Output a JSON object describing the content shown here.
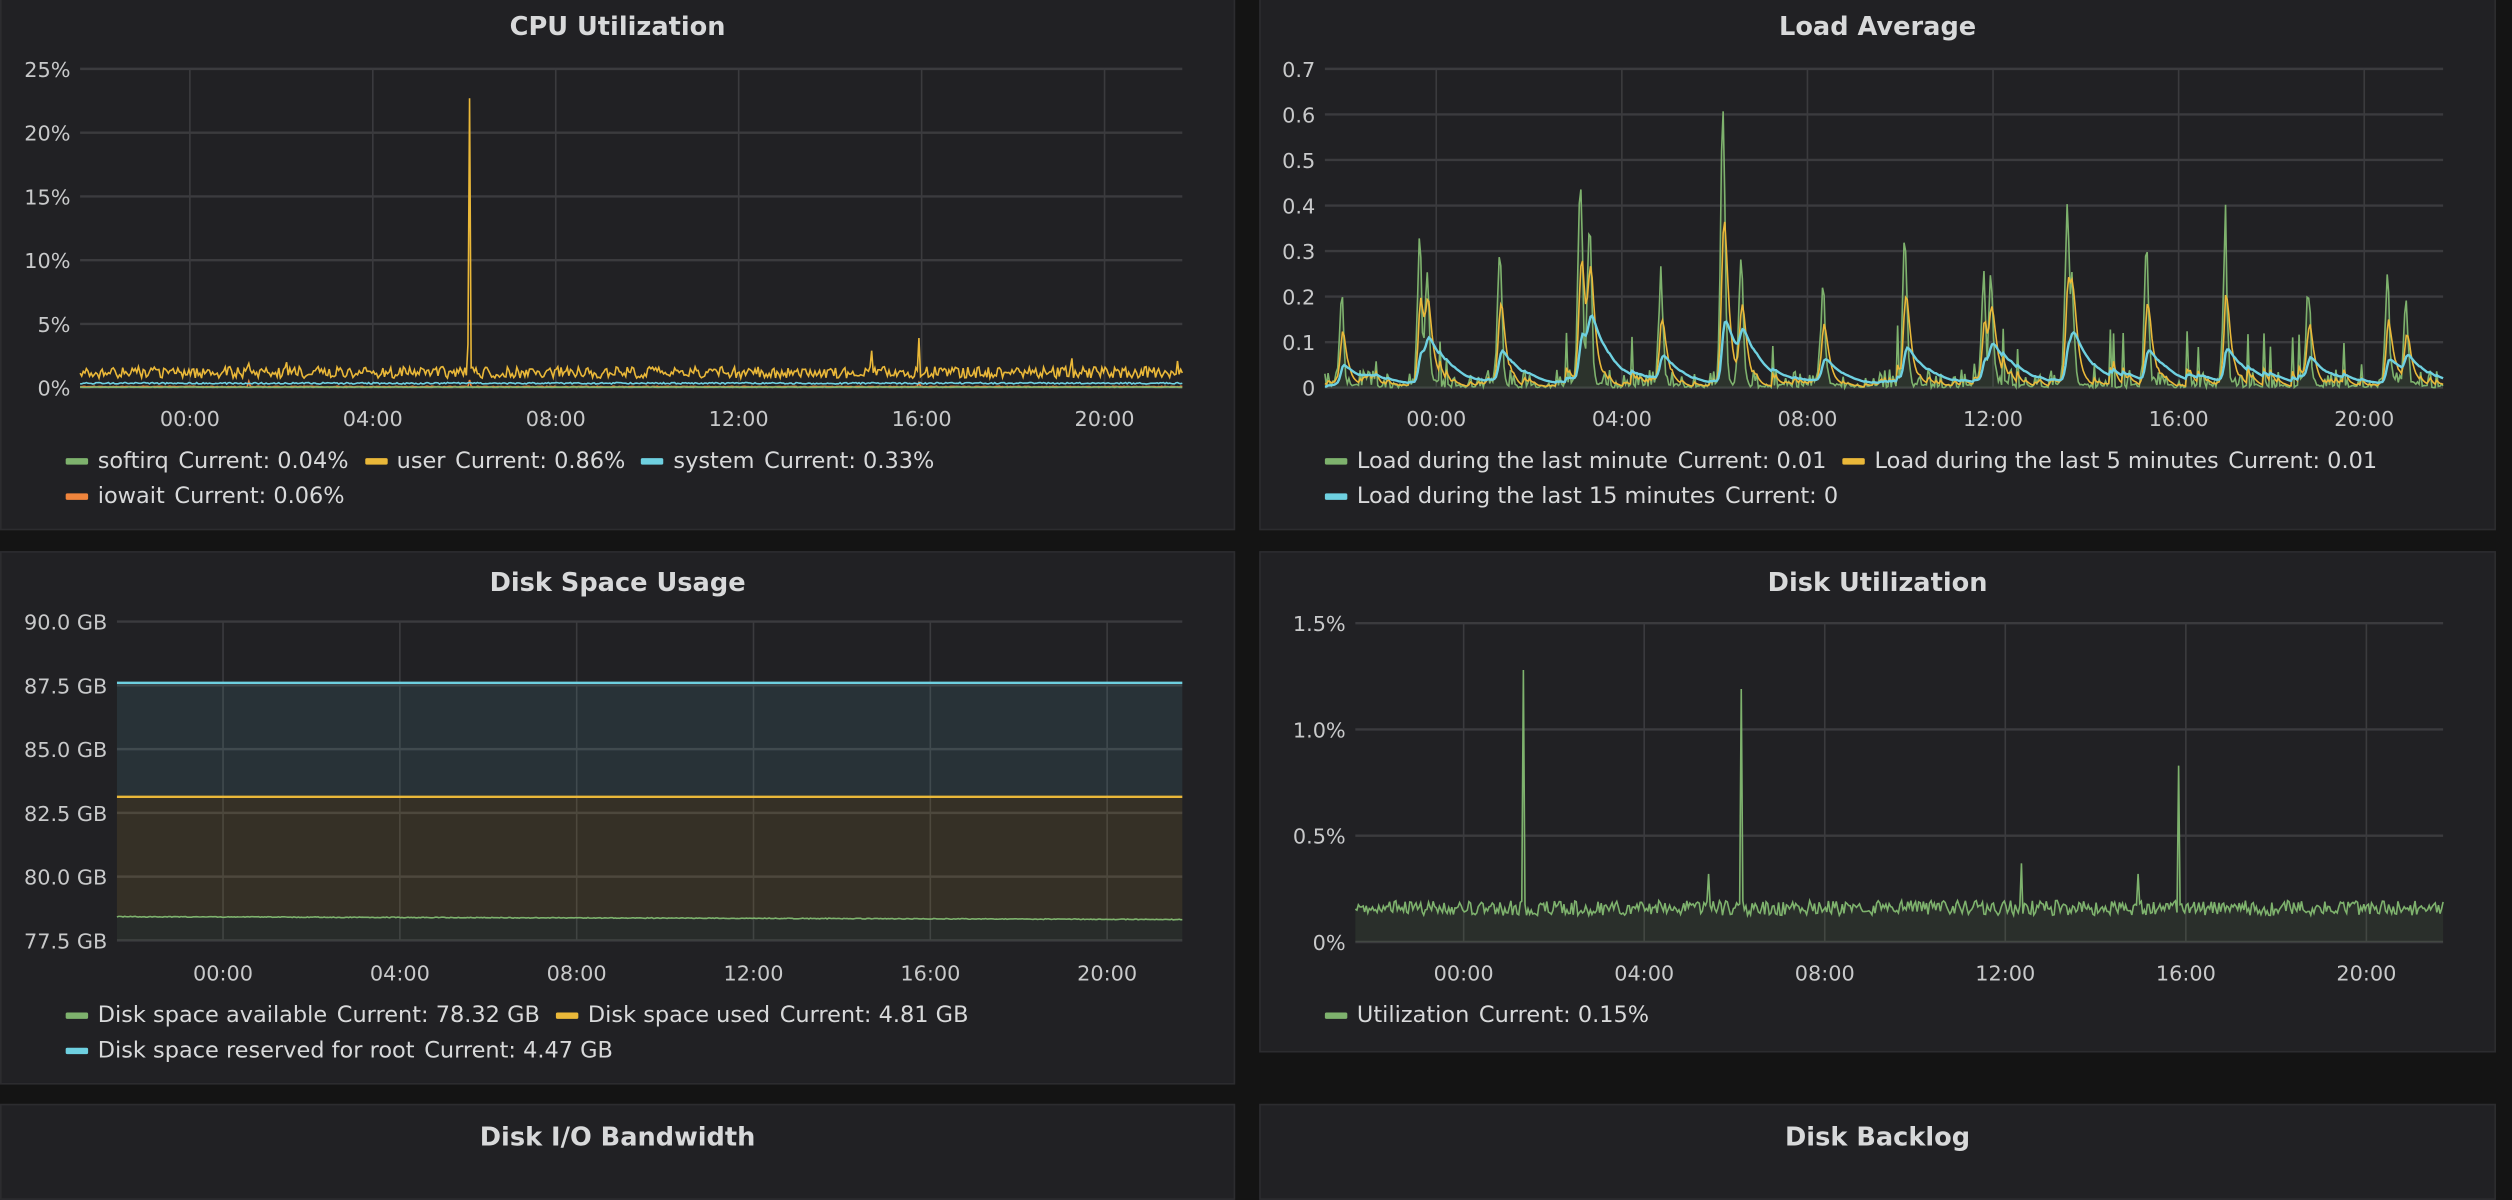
{
  "colors": {
    "green": "#7eb26d",
    "yellow": "#eab839",
    "cyan": "#6ed0e0",
    "orange": "#ef843c",
    "grid": "#3b3b3e",
    "background": "#212124"
  },
  "time_ticks": {
    "hours": [
      0,
      4,
      8,
      12,
      16,
      20
    ],
    "labels": [
      "00:00",
      "04:00",
      "08:00",
      "12:00",
      "16:00",
      "20:00"
    ]
  },
  "chart_data": [
    {
      "id": "cpu",
      "type": "line",
      "title": "CPU Utilization",
      "xrange_hours": [
        -2.4,
        21.7
      ],
      "ylim": [
        0,
        25
      ],
      "yticks": [
        0,
        5,
        10,
        15,
        20,
        25
      ],
      "ytick_labels": [
        "0%",
        "5%",
        "10%",
        "15%",
        "20%",
        "25%"
      ],
      "series": [
        {
          "name": "softirq",
          "color": "#7eb26d",
          "current": "Current: 0.04%",
          "base": 0.04,
          "noise": 0.02,
          "spikes": []
        },
        {
          "name": "user",
          "color": "#eab839",
          "current": "Current: 0.86%",
          "base": 1.2,
          "noise": 0.45,
          "spikes": [
            [
              1.3,
              1.9
            ],
            [
              2.1,
              2.0
            ],
            [
              6.1,
              22.7
            ],
            [
              14.9,
              2.9
            ],
            [
              15.95,
              3.9
            ],
            [
              19.3,
              2.3
            ],
            [
              21.6,
              2.1
            ]
          ]
        },
        {
          "name": "system",
          "color": "#6ed0e0",
          "current": "Current: 0.33%",
          "base": 0.35,
          "noise": 0.06,
          "spikes": []
        },
        {
          "name": "iowait",
          "color": "#ef843c",
          "current": "Current: 0.06%",
          "base": 0.08,
          "noise": 0.03,
          "spikes": [
            [
              6.1,
              0.6
            ],
            [
              1.3,
              0.5
            ],
            [
              15.95,
              0.4
            ]
          ]
        }
      ]
    },
    {
      "id": "load",
      "type": "area",
      "title": "Load Average",
      "xrange_hours": [
        -2.4,
        21.7
      ],
      "ylim": [
        0,
        0.7
      ],
      "yticks": [
        0,
        0.1,
        0.2,
        0.3,
        0.4,
        0.5,
        0.6,
        0.7
      ],
      "ytick_labels": [
        "0",
        "0.1",
        "0.2",
        "0.3",
        "0.4",
        "0.5",
        "0.6",
        "0.7"
      ],
      "peaks": [
        [
          -2.04,
          0.18
        ],
        [
          -0.36,
          0.29
        ],
        [
          -0.2,
          0.21
        ],
        [
          1.37,
          0.26
        ],
        [
          3.1,
          0.42
        ],
        [
          3.3,
          0.33
        ],
        [
          4.84,
          0.22
        ],
        [
          6.18,
          0.6
        ],
        [
          6.57,
          0.28
        ],
        [
          8.33,
          0.2
        ],
        [
          10.1,
          0.3
        ],
        [
          11.8,
          0.22
        ],
        [
          11.95,
          0.2
        ],
        [
          13.6,
          0.38
        ],
        [
          13.7,
          0.22
        ],
        [
          15.3,
          0.27
        ],
        [
          17.0,
          0.28
        ],
        [
          18.8,
          0.17
        ],
        [
          20.5,
          0.2
        ],
        [
          20.9,
          0.17
        ]
      ],
      "series": [
        {
          "name": "Load during the last minute",
          "color": "#7eb26d",
          "current": "Current: 0.01"
        },
        {
          "name": "Load during the last 5 minutes",
          "color": "#eab839",
          "current": "Current: 0.01"
        },
        {
          "name": "Load during the last 15 minutes",
          "color": "#6ed0e0",
          "current": "Current: 0"
        }
      ]
    },
    {
      "id": "diskspace",
      "type": "stacked-area",
      "title": "Disk Space Usage",
      "xrange_hours": [
        -2.4,
        21.7
      ],
      "ylim": [
        77.5,
        90
      ],
      "yticks": [
        77.5,
        80,
        82.5,
        85,
        87.5,
        90
      ],
      "ytick_labels": [
        "77.5 GB",
        "80.0 GB",
        "82.5 GB",
        "85.0 GB",
        "87.5 GB",
        "90.0 GB"
      ],
      "series": [
        {
          "name": "Disk space available",
          "color": "#7eb26d",
          "current": "Current: 78.32 GB",
          "start": 78.43,
          "end": 78.32
        },
        {
          "name": "Disk space used",
          "color": "#eab839",
          "current": "Current: 4.81 GB",
          "start": 4.7,
          "end": 4.81
        },
        {
          "name": "Disk space reserved for root",
          "color": "#6ed0e0",
          "current": "Current: 4.47 GB",
          "start": 4.47,
          "end": 4.47
        }
      ]
    },
    {
      "id": "diskutil",
      "type": "area",
      "title": "Disk Utilization",
      "xrange_hours": [
        -2.4,
        21.7
      ],
      "ylim": [
        0,
        1.5
      ],
      "yticks": [
        0,
        0.5,
        1.0,
        1.5
      ],
      "ytick_labels": [
        "0%",
        "0.5%",
        "1.0%",
        "1.5%"
      ],
      "series": [
        {
          "name": "Utilization",
          "color": "#7eb26d",
          "current": "Current: 0.15%",
          "base": 0.16,
          "noise": 0.035,
          "spikes": [
            [
              1.34,
              1.28
            ],
            [
              5.44,
              0.32
            ],
            [
              6.16,
              1.19
            ],
            [
              12.35,
              0.37
            ],
            [
              14.94,
              0.32
            ],
            [
              15.83,
              0.83
            ]
          ]
        }
      ]
    }
  ],
  "bottom_panels": [
    {
      "title": "Disk I/O Bandwidth"
    },
    {
      "title": "Disk Backlog"
    }
  ]
}
